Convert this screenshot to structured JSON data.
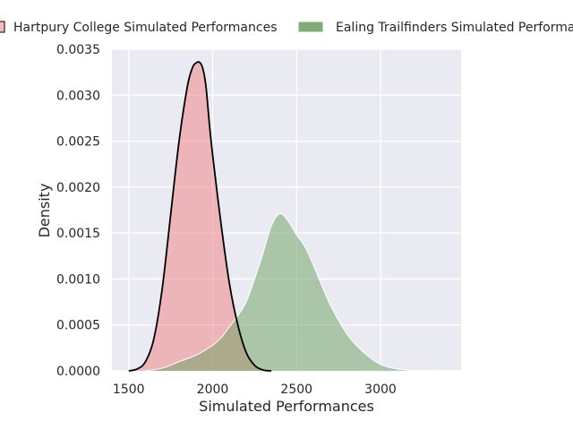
{
  "chart_data": {
    "type": "area",
    "title": "",
    "xlabel": "Simulated Performances",
    "ylabel": "Density",
    "xlim": [
      1400,
      3480
    ],
    "ylim": [
      0,
      0.0035
    ],
    "xticks": [
      {
        "value": 1500,
        "label": "1500"
      },
      {
        "value": 2000,
        "label": "2000"
      },
      {
        "value": 2500,
        "label": "2500"
      },
      {
        "value": 3000,
        "label": "3000"
      }
    ],
    "yticks": [
      {
        "value": 0,
        "label": "0.0000"
      },
      {
        "value": 0.0005,
        "label": "0.0005"
      },
      {
        "value": 0.001,
        "label": "0.0010"
      },
      {
        "value": 0.0015,
        "label": "0.0015"
      },
      {
        "value": 0.002,
        "label": "0.0020"
      },
      {
        "value": 0.0025,
        "label": "0.0025"
      },
      {
        "value": 0.003,
        "label": "0.0030"
      },
      {
        "value": 0.0035,
        "label": "0.0035"
      }
    ],
    "grid": true,
    "legend_position": "top",
    "series": [
      {
        "name": "Hartpury College Simulated Performances",
        "fill_color": "#f08080",
        "line_color": "#000000",
        "x": [
          1500,
          1550,
          1600,
          1650,
          1700,
          1750,
          1800,
          1850,
          1880,
          1900,
          1920,
          1940,
          1960,
          1980,
          2000,
          2050,
          2100,
          2150,
          2200,
          2250,
          2300,
          2350
        ],
        "y": [
          0.0,
          2e-05,
          0.0001,
          0.00035,
          0.0009,
          0.0017,
          0.0025,
          0.0031,
          0.0033,
          0.00335,
          0.00336,
          0.0033,
          0.0031,
          0.0027,
          0.00235,
          0.0016,
          0.00095,
          0.0005,
          0.0002,
          6e-05,
          1e-05,
          0.0
        ]
      },
      {
        "name": "Ealing Trailfinders Simulated Performances",
        "fill_color": "#6a9f5e",
        "line_color": "#ffffff",
        "x": [
          1600,
          1700,
          1800,
          1900,
          2000,
          2050,
          2100,
          2150,
          2200,
          2250,
          2300,
          2350,
          2400,
          2450,
          2500,
          2550,
          2600,
          2650,
          2700,
          2800,
          2900,
          3000,
          3100,
          3200,
          3300,
          3400
        ],
        "y": [
          0.0,
          3e-05,
          0.0001,
          0.00017,
          0.00028,
          0.00036,
          0.00048,
          0.0006,
          0.00075,
          0.001,
          0.00128,
          0.00158,
          0.00171,
          0.00163,
          0.00148,
          0.00135,
          0.00115,
          0.00093,
          0.00072,
          0.0004,
          0.0002,
          7e-05,
          2e-05,
          5e-06,
          1e-06,
          0.0
        ]
      }
    ]
  }
}
